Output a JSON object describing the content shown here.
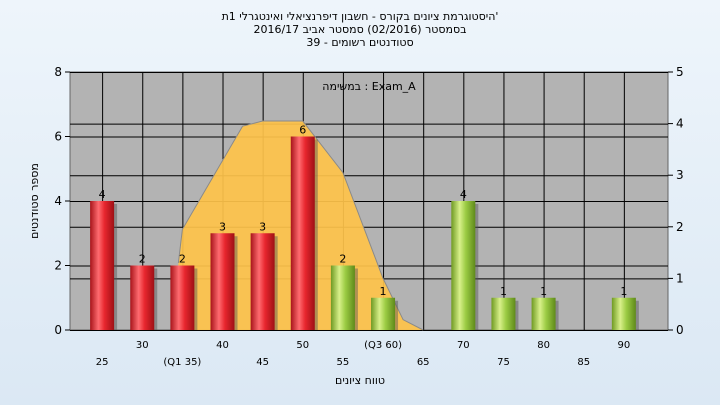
{
  "chart_data": {
    "type": "bar",
    "title_lines": [
      "היסטוגרמת ציונים בקורס - חשבון דיפרנציאלי ואינטגרלי 1ת'",
      "בסמסטר  (02/2016)  סמסטר אביב 2016/17",
      "סטודנטים רשומים - 39"
    ],
    "annotation": "במשימה : Exam_A",
    "xlabel": "טווח ציונים",
    "ylabel": "מספר סטודנטים",
    "x_tick_labels": [
      {
        "x": 25,
        "label": "25",
        "row": 2
      },
      {
        "x": 30,
        "label": "30",
        "row": 1
      },
      {
        "x": 35,
        "label": "(Q1 35)",
        "row": 2
      },
      {
        "x": 40,
        "label": "40",
        "row": 1
      },
      {
        "x": 45,
        "label": "45",
        "row": 2
      },
      {
        "x": 50,
        "label": "50",
        "row": 1
      },
      {
        "x": 55,
        "label": "55",
        "row": 2
      },
      {
        "x": 60,
        "label": "(Q3 60)",
        "row": 1
      },
      {
        "x": 65,
        "label": "65",
        "row": 2
      },
      {
        "x": 70,
        "label": "70",
        "row": 1
      },
      {
        "x": 75,
        "label": "75",
        "row": 2
      },
      {
        "x": 80,
        "label": "80",
        "row": 1
      },
      {
        "x": 85,
        "label": "85",
        "row": 2
      },
      {
        "x": 90,
        "label": "90",
        "row": 1
      }
    ],
    "ylim": [
      0,
      8
    ],
    "y_ticks": [
      0,
      2,
      4,
      6,
      8
    ],
    "y2lim": [
      0,
      5
    ],
    "y2_ticks": [
      0,
      1,
      2,
      3,
      4,
      5
    ],
    "bars": [
      {
        "x": 25,
        "value": 4,
        "label": "4",
        "color": "red"
      },
      {
        "x": 30,
        "value": 2,
        "label": "2",
        "color": "red"
      },
      {
        "x": 35,
        "value": 2,
        "label": "2",
        "color": "red"
      },
      {
        "x": 40,
        "value": 3,
        "label": "3",
        "color": "red"
      },
      {
        "x": 45,
        "value": 3,
        "label": "3",
        "color": "red"
      },
      {
        "x": 50,
        "value": 6,
        "label": "6",
        "color": "red"
      },
      {
        "x": 55,
        "value": 2,
        "label": "2",
        "color": "green"
      },
      {
        "x": 60,
        "value": 1,
        "label": "1",
        "color": "green"
      },
      {
        "x": 70,
        "value": 4,
        "label": "4",
        "color": "green"
      },
      {
        "x": 75,
        "value": 1,
        "label": "1",
        "color": "green"
      },
      {
        "x": 80,
        "value": 1,
        "label": "1",
        "color": "green"
      },
      {
        "x": 90,
        "value": 1,
        "label": "1",
        "color": "green"
      }
    ],
    "distribution_area": {
      "axis": "y2",
      "points": [
        [
          34.5,
          1.3
        ],
        [
          35,
          1.95
        ],
        [
          42.5,
          3.95
        ],
        [
          45,
          4.05
        ],
        [
          47.5,
          4.05
        ],
        [
          50,
          4.05
        ],
        [
          55,
          3.05
        ],
        [
          60,
          1.0
        ],
        [
          62.5,
          0.2
        ],
        [
          65,
          0
        ]
      ]
    },
    "colors": {
      "red": "#e8262e",
      "green": "#9ccc44",
      "area": "#ffc34a",
      "plot_bg": "#b3b3b3"
    },
    "grid": true
  }
}
